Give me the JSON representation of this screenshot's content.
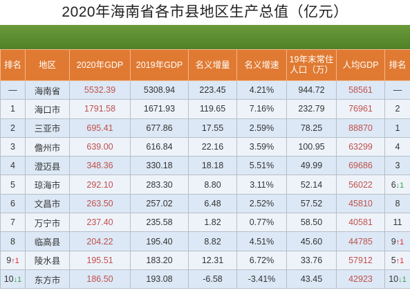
{
  "title": "2020年海南省各市县地区生产总值（亿元）",
  "colors": {
    "header_bg": "#e07a32",
    "banner": "#5a8a2e",
    "gdp_text": "#c0504d",
    "rank_up": "#e0282d",
    "rank_down": "#2fa04a"
  },
  "table": {
    "headers": [
      {
        "l1": "排名",
        "l2": ""
      },
      {
        "l1": "地区",
        "l2": ""
      },
      {
        "l1": "2020年GDP",
        "l2": ""
      },
      {
        "l1": "2019年GDP",
        "l2": ""
      },
      {
        "l1": "名义增量",
        "l2": ""
      },
      {
        "l1": "名义增速",
        "l2": ""
      },
      {
        "l1": "19年末常住",
        "l2": "人口（万）"
      },
      {
        "l1": "人均GDP",
        "l2": ""
      },
      {
        "l1": "排名",
        "l2": ""
      }
    ],
    "rows": [
      {
        "rank": "—",
        "rank_change": "",
        "region": "海南省",
        "gdp2020": "5532.39",
        "gdp2019": "5308.94",
        "increment": "223.45",
        "growth": "4.21%",
        "population": "944.72",
        "per_capita": "58561",
        "pc_rank": "—",
        "pc_rank_change": ""
      },
      {
        "rank": "1",
        "rank_change": "",
        "region": "海口市",
        "gdp2020": "1791.58",
        "gdp2019": "1671.93",
        "increment": "119.65",
        "growth": "7.16%",
        "population": "232.79",
        "per_capita": "76961",
        "pc_rank": "2",
        "pc_rank_change": ""
      },
      {
        "rank": "2",
        "rank_change": "",
        "region": "三亚市",
        "gdp2020": "695.41",
        "gdp2019": "677.86",
        "increment": "17.55",
        "growth": "2.59%",
        "population": "78.25",
        "per_capita": "88870",
        "pc_rank": "1",
        "pc_rank_change": ""
      },
      {
        "rank": "3",
        "rank_change": "",
        "region": "儋州市",
        "gdp2020": "639.00",
        "gdp2019": "616.84",
        "increment": "22.16",
        "growth": "3.59%",
        "population": "100.95",
        "per_capita": "63299",
        "pc_rank": "4",
        "pc_rank_change": ""
      },
      {
        "rank": "4",
        "rank_change": "",
        "region": "澄迈县",
        "gdp2020": "348.36",
        "gdp2019": "330.18",
        "increment": "18.18",
        "growth": "5.51%",
        "population": "49.99",
        "per_capita": "69686",
        "pc_rank": "3",
        "pc_rank_change": ""
      },
      {
        "rank": "5",
        "rank_change": "",
        "region": "琼海市",
        "gdp2020": "292.10",
        "gdp2019": "283.30",
        "increment": "8.80",
        "growth": "3.11%",
        "population": "52.14",
        "per_capita": "56022",
        "pc_rank": "6",
        "pc_rank_change": "↓1"
      },
      {
        "rank": "6",
        "rank_change": "",
        "region": "文昌市",
        "gdp2020": "263.50",
        "gdp2019": "257.02",
        "increment": "6.48",
        "growth": "2.52%",
        "population": "57.52",
        "per_capita": "45810",
        "pc_rank": "8",
        "pc_rank_change": ""
      },
      {
        "rank": "7",
        "rank_change": "",
        "region": "万宁市",
        "gdp2020": "237.40",
        "gdp2019": "235.58",
        "increment": "1.82",
        "growth": "0.77%",
        "population": "58.50",
        "per_capita": "40581",
        "pc_rank": "11",
        "pc_rank_change": ""
      },
      {
        "rank": "8",
        "rank_change": "",
        "region": "临高县",
        "gdp2020": "204.22",
        "gdp2019": "195.40",
        "increment": "8.82",
        "growth": "4.51%",
        "population": "45.60",
        "per_capita": "44785",
        "pc_rank": "9",
        "pc_rank_change": "↑1"
      },
      {
        "rank": "9",
        "rank_change": "↑1",
        "region": "陵水县",
        "gdp2020": "195.51",
        "gdp2019": "183.20",
        "increment": "12.31",
        "growth": "6.72%",
        "population": "33.76",
        "per_capita": "57912",
        "pc_rank": "5",
        "pc_rank_change": "↑1"
      },
      {
        "rank": "10",
        "rank_change": "↓1",
        "region": "东方市",
        "gdp2020": "186.50",
        "gdp2019": "193.08",
        "increment": "-6.58",
        "growth": "-3.41%",
        "population": "43.45",
        "per_capita": "42923",
        "pc_rank": "10",
        "pc_rank_change": "↓1"
      }
    ]
  }
}
